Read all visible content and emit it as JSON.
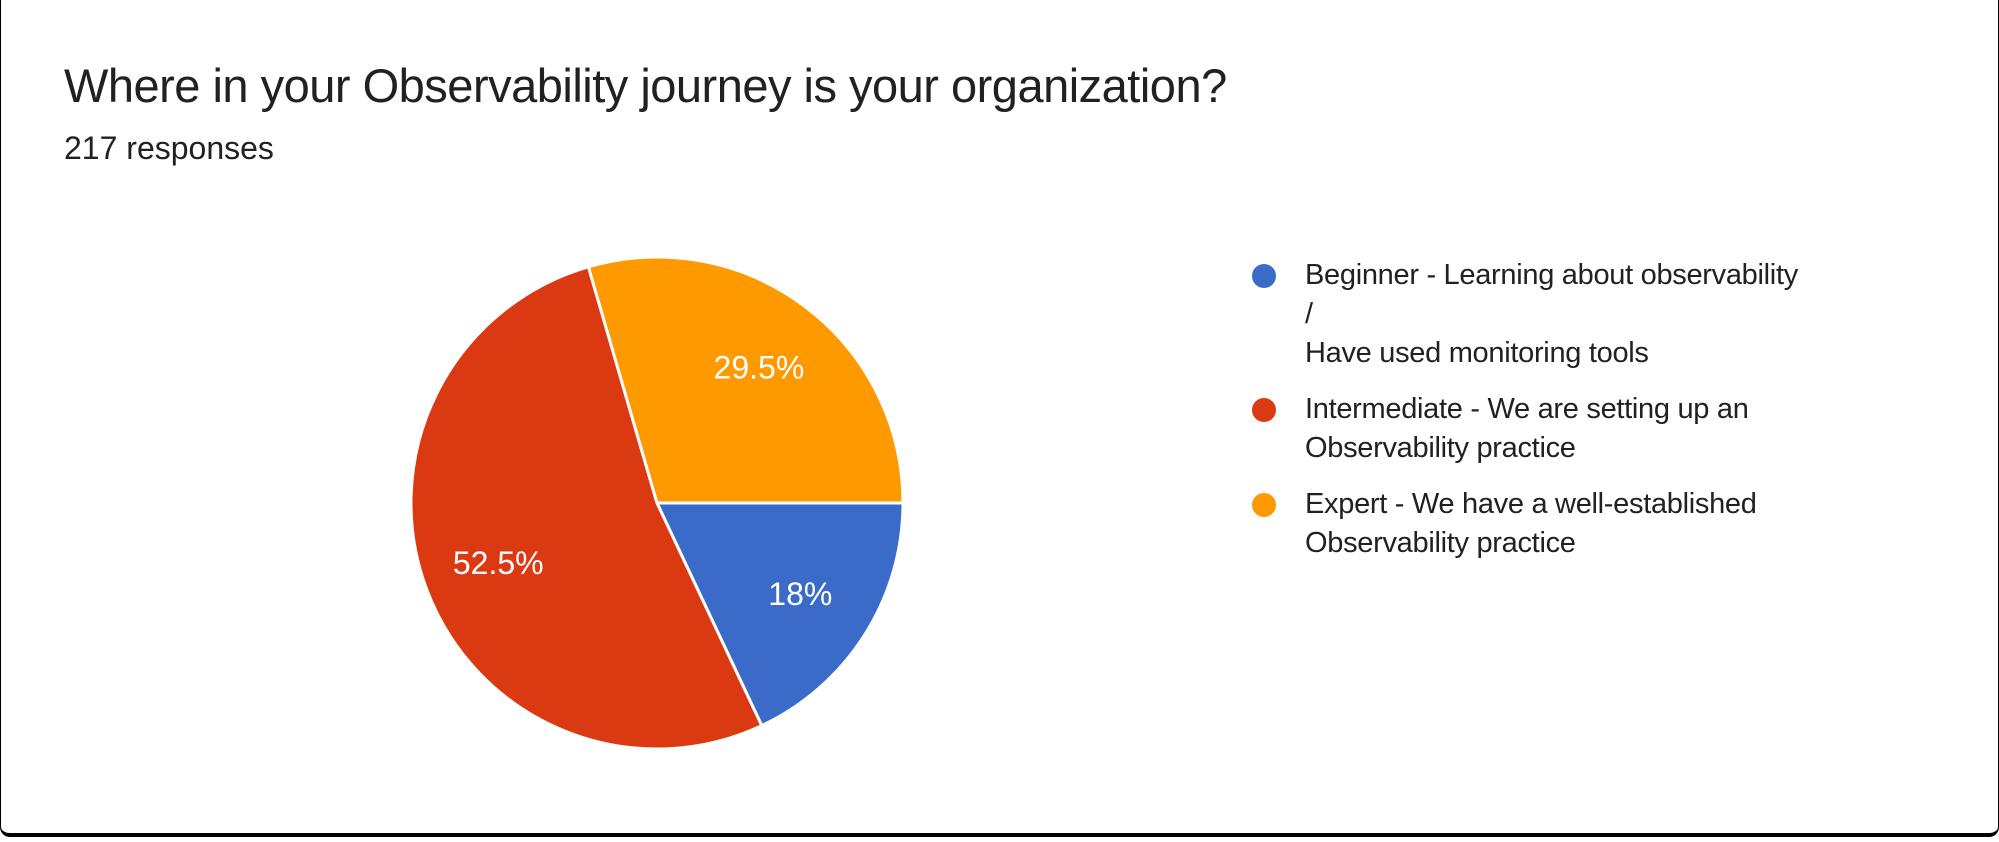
{
  "header": {
    "title": "Where in your Observability journey is your organization?",
    "responses_count_label": "217 responses"
  },
  "chart_data": {
    "type": "pie",
    "title": "Where in your Observability journey is your organization?",
    "subtitle": "217 responses",
    "start_angle_deg": 0,
    "direction": "clockwise",
    "legend_position": "right",
    "slice_label_color": "#ffffff",
    "slices": [
      {
        "name": "Beginner - Learning about observability / Have used monitoring tools",
        "value": 18,
        "display": "18%",
        "color": "#3B6BC9"
      },
      {
        "name": "Intermediate - We are setting up an Observability practice",
        "value": 52.5,
        "display": "52.5%",
        "color": "#DB3912"
      },
      {
        "name": "Expert - We have a well-established Observability practice",
        "value": 29.5,
        "display": "29.5%",
        "color": "#FF9900"
      }
    ]
  },
  "legend": {
    "items": [
      {
        "lines": [
          "Beginner - Learning about observability /",
          "Have used monitoring tools"
        ]
      },
      {
        "lines": [
          "Intermediate - We are setting up an",
          "Observability practice"
        ]
      },
      {
        "lines": [
          "Expert - We have a well-established",
          "Observability practice"
        ]
      }
    ]
  },
  "frame": {
    "border_color": "#000000"
  }
}
